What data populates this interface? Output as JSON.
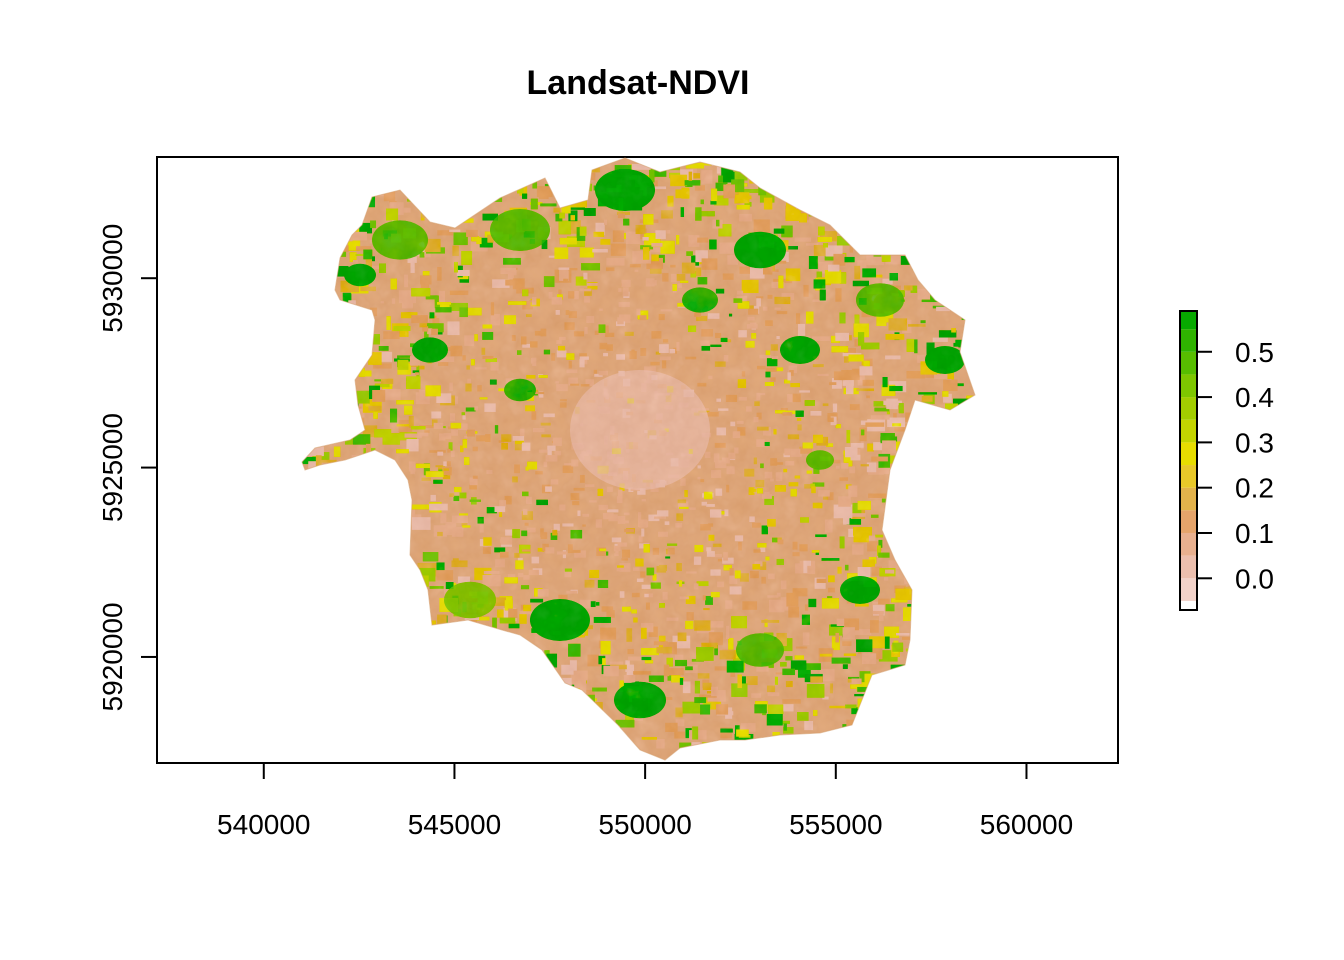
{
  "title": "Landsat-NDVI",
  "chart_data": {
    "type": "heatmap",
    "title": "Landsat-NDVI",
    "xlabel": "",
    "ylabel": "",
    "x_ticks": [
      540000,
      545000,
      550000,
      555000,
      560000
    ],
    "y_ticks": [
      5920000,
      5925000,
      5930000
    ],
    "x_tick_labels": [
      "540000",
      "545000",
      "550000",
      "555000",
      "560000"
    ],
    "y_tick_labels": [
      "5920000",
      "5925000",
      "5930000"
    ],
    "xlim": [
      537200,
      562400
    ],
    "ylim": [
      5917200,
      5933200
    ],
    "colorbar": {
      "ticks": [
        0.0,
        0.1,
        0.2,
        0.3,
        0.4,
        0.5
      ],
      "tick_labels": [
        "0.0",
        "0.1",
        "0.2",
        "0.3",
        "0.4",
        "0.5"
      ],
      "range": [
        -0.07,
        0.59
      ],
      "breaks": [
        -0.07,
        -0.05,
        0.0,
        0.05,
        0.1,
        0.15,
        0.2,
        0.25,
        0.3,
        0.35,
        0.4,
        0.45,
        0.5,
        0.55,
        0.59
      ],
      "colors": [
        "#ffffff",
        "#f2d2c9",
        "#ecbfae",
        "#e8b08f",
        "#e5a46b",
        "#e2b24b",
        "#e8c829",
        "#e7dd00",
        "#c4d400",
        "#a2cd00",
        "#7ec600",
        "#57bd00",
        "#2fb300",
        "#07a900"
      ]
    }
  }
}
